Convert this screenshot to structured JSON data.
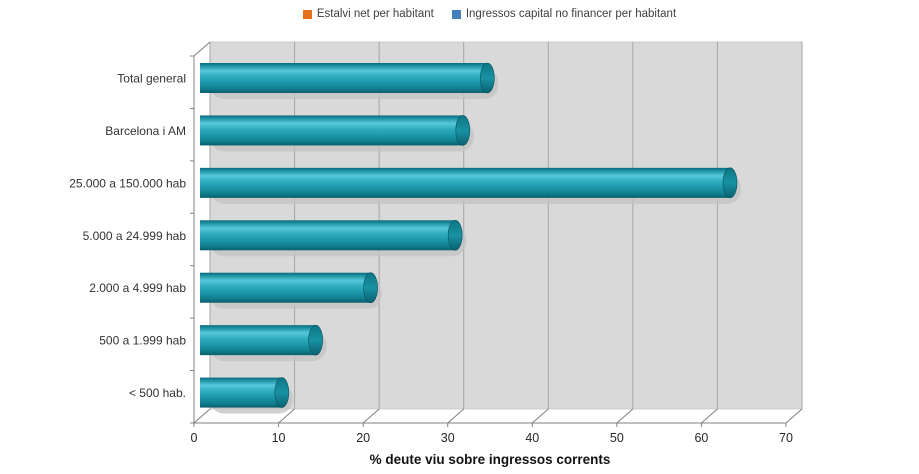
{
  "legend": {
    "items": [
      {
        "label": "Estalvi net per habitant",
        "color": "#E5701B",
        "swatch": "orange-square"
      },
      {
        "label": "Ingressos capital no financer per habitant",
        "color": "#4480BC",
        "swatch": "blue-square"
      }
    ]
  },
  "chart_data": {
    "type": "bar",
    "orientation": "horizontal",
    "style": "3d-cylinder",
    "title": "",
    "categories": [
      "Total general",
      "Barcelona i AM",
      "25.000 a 150.000 hab",
      "5.000 a 24.999 hab",
      "2.000 a 4.999 hab",
      "500 a 1.999 hab",
      "< 500 hab."
    ],
    "values": [
      34.8,
      31.9,
      63.5,
      31.0,
      21.0,
      14.5,
      10.5
    ],
    "xlabel": "% deute viu sobre ingressos corrents",
    "xlim": [
      0,
      70
    ],
    "xticks": [
      0,
      10,
      20,
      30,
      40,
      50,
      60,
      70
    ],
    "gridlines": true,
    "legend_position": "top",
    "colors": {
      "bar": "#1CA0B2",
      "bar_dark": "#0A5E6D",
      "bar_highlight": "#56C9DA",
      "bar_shadow": "#C2C2C2",
      "plot_background": "#D9D9D9",
      "gridline": "#A6A6A6",
      "axis_line": "#808080",
      "tick_text": "#262626",
      "category_text": "#333333",
      "axis_title_text": "#111111"
    }
  }
}
